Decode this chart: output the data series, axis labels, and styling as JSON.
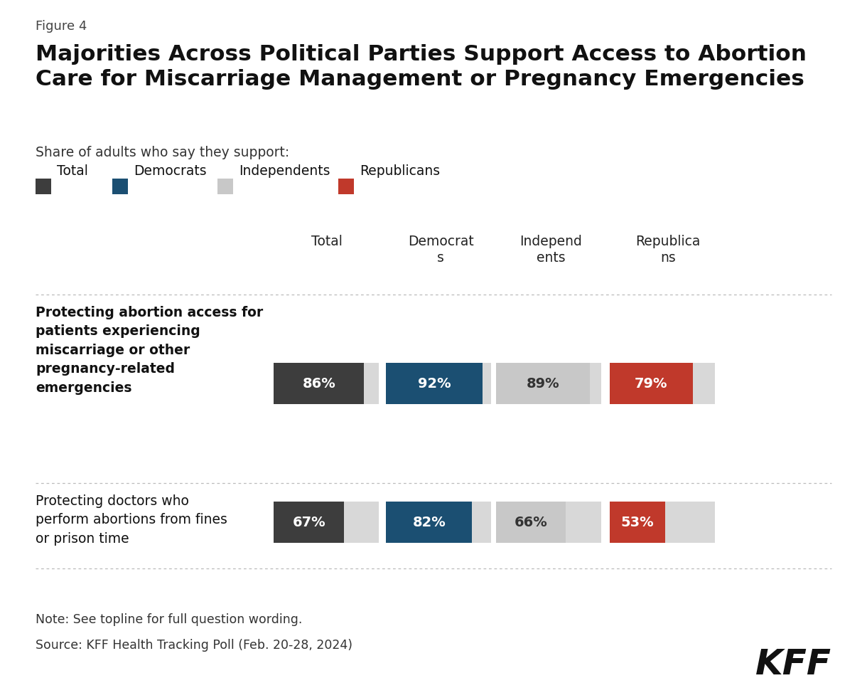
{
  "figure_label": "Figure 4",
  "title": "Majorities Across Political Parties Support Access to Abortion\nCare for Miscarriage Management or Pregnancy Emergencies",
  "subtitle": "Share of adults who say they support:",
  "legend_labels": [
    "Total",
    "Democrats",
    "Independents",
    "Republicans"
  ],
  "legend_colors": [
    "#3d3d3d",
    "#1b4f72",
    "#c8c8c8",
    "#c0392b"
  ],
  "col_headers": [
    "Total",
    "Democrat\ns",
    "Independ\nents",
    "Republica\nns"
  ],
  "row_labels": [
    "Protecting abortion access for\npatients experiencing\nmiscarriage or other\npregnancy-related\nemergencies",
    "Protecting doctors who\nperform abortions from fines\nor prison time"
  ],
  "values": [
    [
      86,
      92,
      89,
      79
    ],
    [
      67,
      82,
      66,
      53
    ]
  ],
  "colors": [
    "#3d3d3d",
    "#1b4f72",
    "#c8c8c8",
    "#c0392b"
  ],
  "bar_text_colors": [
    "#ffffff",
    "#ffffff",
    "#333333",
    "#ffffff"
  ],
  "note": "Note: See topline for full question wording.",
  "source": "Source: KFF Health Tracking Poll (Feb. 20-28, 2024)",
  "kff_label": "KFF",
  "background_color": "#ffffff"
}
